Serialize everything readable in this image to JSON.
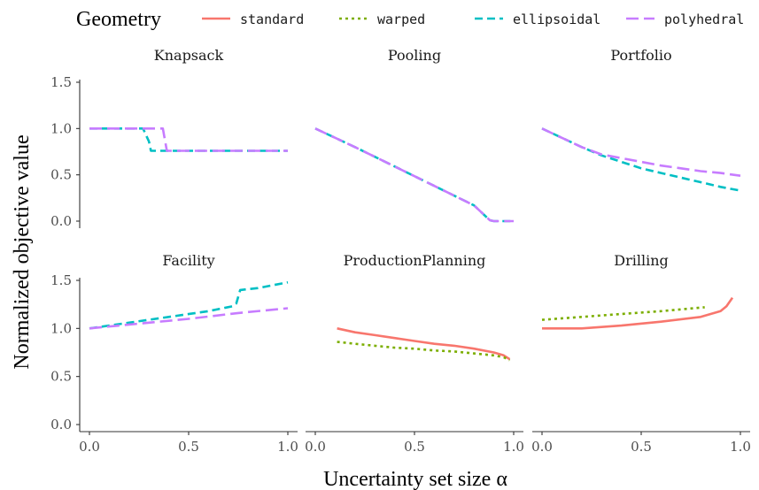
{
  "legend": {
    "title": "Geometry",
    "items": [
      {
        "name": "standard",
        "color": "#F8766D",
        "dash": "solid"
      },
      {
        "name": "warped",
        "color": "#7CAE00",
        "dash": "dotted"
      },
      {
        "name": "ellipsoidal",
        "color": "#00BFC4",
        "dash": "dashed"
      },
      {
        "name": "polyhedral",
        "color": "#C77CFF",
        "dash": "longdash"
      }
    ]
  },
  "xlabel": "Uncertainty set size α",
  "ylabel": "Normalized objective value",
  "chart_data": {
    "type": "line",
    "xlim": [
      0,
      1
    ],
    "xticks": [
      0.0,
      0.5,
      1.0
    ],
    "xtick_labels": [
      "0.0",
      "0.5",
      "1.0"
    ],
    "rows": [
      {
        "ylim": [
          0,
          1.5
        ],
        "yticks": [
          0.0,
          0.5,
          1.0,
          1.5
        ],
        "ytick_labels": [
          "0.0",
          "0.5",
          "1.0",
          "1.5"
        ]
      },
      {
        "ylim": [
          0,
          1.5
        ],
        "yticks": [
          0.0,
          0.5,
          1.0,
          1.5
        ],
        "ytick_labels": [
          "0.0",
          "0.5",
          "1.0",
          "1.5"
        ]
      }
    ],
    "panels": [
      {
        "title": "Knapsack",
        "series": [
          {
            "name": "ellipsoidal",
            "x": [
              0,
              0.27,
              0.3,
              0.31,
              1.0
            ],
            "y": [
              1.0,
              1.0,
              0.86,
              0.76,
              0.76
            ]
          },
          {
            "name": "polyhedral",
            "x": [
              0,
              0.37,
              0.39,
              1.0
            ],
            "y": [
              1.0,
              1.0,
              0.76,
              0.76
            ]
          }
        ]
      },
      {
        "title": "Pooling",
        "series": [
          {
            "name": "ellipsoidal",
            "x": [
              0,
              0.2,
              0.4,
              0.6,
              0.8,
              0.88,
              0.9,
              1.0
            ],
            "y": [
              1.0,
              0.8,
              0.59,
              0.38,
              0.17,
              0.01,
              0.0,
              0.0
            ]
          },
          {
            "name": "polyhedral",
            "x": [
              0,
              0.2,
              0.4,
              0.6,
              0.8,
              0.88,
              0.9,
              1.0
            ],
            "y": [
              1.0,
              0.8,
              0.59,
              0.38,
              0.17,
              0.01,
              0.0,
              0.0
            ]
          }
        ]
      },
      {
        "title": "Portfolio",
        "series": [
          {
            "name": "ellipsoidal",
            "x": [
              0,
              0.1,
              0.2,
              0.3,
              0.4,
              0.5,
              0.6,
              0.7,
              0.8,
              0.9,
              1.0
            ],
            "y": [
              1.0,
              0.9,
              0.8,
              0.71,
              0.64,
              0.57,
              0.52,
              0.47,
              0.42,
              0.37,
              0.33
            ]
          },
          {
            "name": "polyhedral",
            "x": [
              0,
              0.1,
              0.2,
              0.3,
              0.4,
              0.5,
              0.6,
              0.7,
              0.8,
              0.9,
              1.0
            ],
            "y": [
              1.0,
              0.9,
              0.8,
              0.72,
              0.68,
              0.64,
              0.6,
              0.57,
              0.54,
              0.52,
              0.49
            ]
          }
        ]
      },
      {
        "title": "Facility",
        "series": [
          {
            "name": "ellipsoidal",
            "x": [
              0,
              0.2,
              0.4,
              0.6,
              0.72,
              0.74,
              0.76,
              0.85,
              1.0
            ],
            "y": [
              1.0,
              1.06,
              1.12,
              1.18,
              1.23,
              1.26,
              1.4,
              1.42,
              1.48
            ]
          },
          {
            "name": "polyhedral",
            "x": [
              0,
              0.25,
              0.5,
              0.75,
              1.0
            ],
            "y": [
              1.0,
              1.05,
              1.1,
              1.16,
              1.21
            ]
          }
        ]
      },
      {
        "title": "ProductionPlanning",
        "series": [
          {
            "name": "standard",
            "x": [
              0.11,
              0.2,
              0.3,
              0.4,
              0.5,
              0.6,
              0.7,
              0.8,
              0.9,
              0.95,
              0.98
            ],
            "y": [
              1.0,
              0.96,
              0.93,
              0.9,
              0.87,
              0.84,
              0.82,
              0.79,
              0.75,
              0.72,
              0.68
            ]
          },
          {
            "name": "warped",
            "x": [
              0.11,
              0.2,
              0.3,
              0.4,
              0.5,
              0.6,
              0.7,
              0.8,
              0.9,
              0.95,
              0.98
            ],
            "y": [
              0.86,
              0.84,
              0.82,
              0.8,
              0.79,
              0.77,
              0.76,
              0.74,
              0.72,
              0.7,
              0.67
            ]
          }
        ]
      },
      {
        "title": "Drilling",
        "series": [
          {
            "name": "standard",
            "x": [
              0.0,
              0.2,
              0.4,
              0.6,
              0.8,
              0.9,
              0.93,
              0.96
            ],
            "y": [
              1.0,
              1.0,
              1.03,
              1.07,
              1.12,
              1.18,
              1.23,
              1.32
            ]
          },
          {
            "name": "warped",
            "x": [
              0.0,
              0.2,
              0.4,
              0.6,
              0.82
            ],
            "y": [
              1.09,
              1.12,
              1.15,
              1.18,
              1.22
            ]
          }
        ]
      }
    ]
  }
}
